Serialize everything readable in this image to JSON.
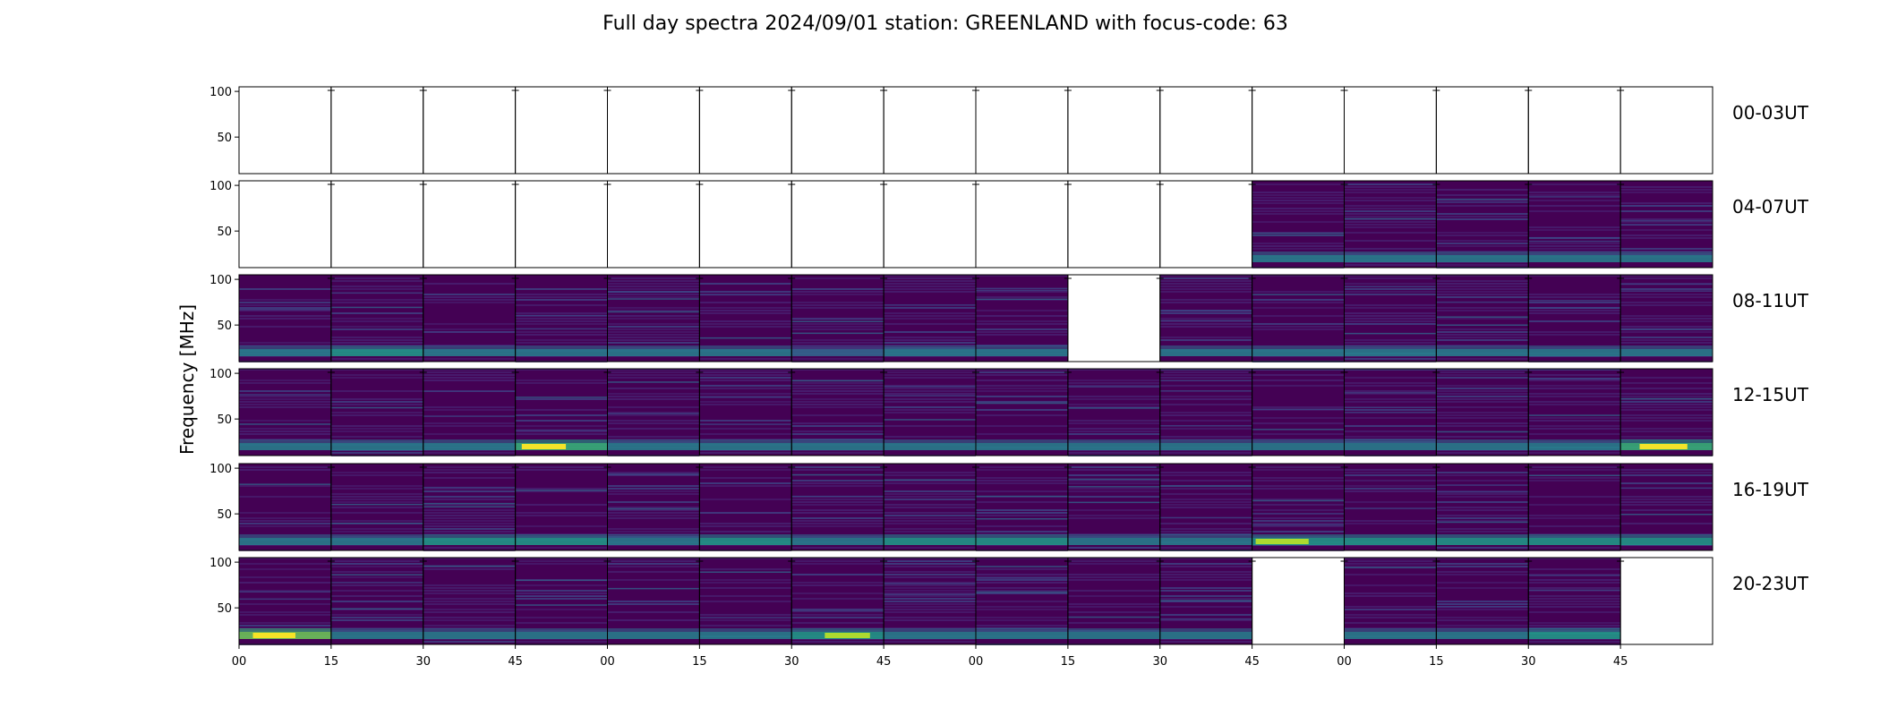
{
  "chart_data": {
    "type": "heatmap",
    "title": "Full day spectra 2024/09/01 station: GREENLAND with focus-code: 63",
    "ylabel": "Frequency [MHz]",
    "xlabel": "",
    "ylim": [
      10,
      105
    ],
    "yticks": [
      "50",
      "100"
    ],
    "ytick_values": [
      50,
      100
    ],
    "xtick_labels": [
      "00",
      "15",
      "30",
      "45",
      "00",
      "15",
      "30",
      "45",
      "00",
      "15",
      "30",
      "45",
      "00",
      "15",
      "30",
      "45"
    ],
    "colormap": [
      "#440154",
      "#482777",
      "#3e4989",
      "#31688e",
      "#26828e",
      "#1f9e89",
      "#35b779",
      "#6ece58",
      "#b5de2b",
      "#fde725"
    ],
    "empty_color": "#ffffff",
    "rows": [
      {
        "label": "00-03UT",
        "present": [
          0,
          0,
          0,
          0,
          0,
          0,
          0,
          0,
          0,
          0,
          0,
          0,
          0,
          0,
          0,
          0
        ],
        "activity": [
          0,
          0,
          0,
          0,
          0,
          0,
          0,
          0,
          0,
          0,
          0,
          0,
          0,
          0,
          0,
          0
        ]
      },
      {
        "label": "04-07UT",
        "present": [
          0,
          0,
          0,
          0,
          0,
          0,
          0,
          0,
          0,
          0,
          0,
          1,
          1,
          1,
          1,
          1
        ],
        "activity": [
          0,
          0,
          0,
          0,
          0,
          0,
          0,
          0,
          0,
          0,
          0,
          0.35,
          0.3,
          0.45,
          0.3,
          0.3
        ]
      },
      {
        "label": "08-11UT",
        "present": [
          1,
          1,
          1,
          1,
          1,
          1,
          1,
          1,
          1,
          0,
          1,
          1,
          1,
          1,
          1,
          1
        ],
        "activity": [
          0.45,
          0.5,
          0.3,
          0.35,
          0.3,
          0.45,
          0.25,
          0.35,
          0.45,
          0,
          0.35,
          0.45,
          0.35,
          0.35,
          0.4,
          0.45
        ]
      },
      {
        "label": "12-15UT",
        "present": [
          1,
          1,
          1,
          1,
          1,
          1,
          1,
          1,
          1,
          1,
          1,
          1,
          1,
          1,
          1,
          1
        ],
        "activity": [
          0.35,
          0.4,
          0.3,
          0.7,
          0.35,
          0.35,
          0.3,
          0.3,
          0.35,
          0.35,
          0.3,
          0.35,
          0.3,
          0.3,
          0.3,
          0.8
        ]
      },
      {
        "label": "16-19UT",
        "present": [
          1,
          1,
          1,
          1,
          1,
          1,
          1,
          1,
          1,
          1,
          1,
          1,
          1,
          1,
          1,
          1
        ],
        "activity": [
          0.45,
          0.45,
          0.5,
          0.5,
          0.45,
          0.5,
          0.45,
          0.55,
          0.5,
          0.45,
          0.45,
          0.6,
          0.5,
          0.5,
          0.5,
          0.5
        ]
      },
      {
        "label": "20-23UT",
        "present": [
          1,
          1,
          1,
          1,
          1,
          1,
          1,
          1,
          1,
          1,
          1,
          0,
          1,
          1,
          1,
          0
        ],
        "activity": [
          0.9,
          0.45,
          0.35,
          0.3,
          0.3,
          0.3,
          0.6,
          0.3,
          0.3,
          0.3,
          0.3,
          0,
          0.4,
          0.3,
          0.5,
          0
        ]
      }
    ]
  }
}
